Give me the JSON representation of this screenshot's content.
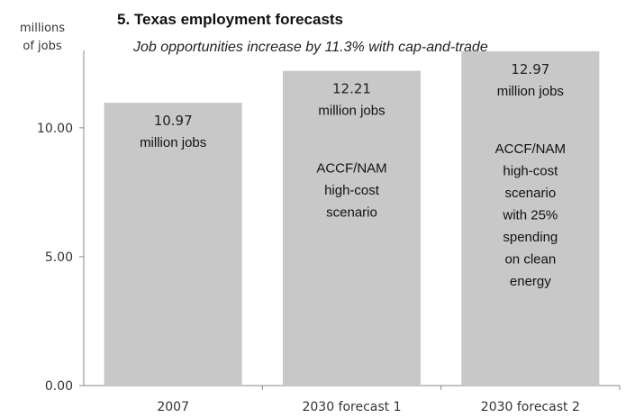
{
  "chart_data": {
    "type": "bar",
    "title": "5. Texas employment forecasts",
    "subtitle": "Job opportunities increase by 11.3% with cap-and-trade",
    "ylabel": [
      "millions",
      "of jobs"
    ],
    "ylim": [
      0,
      13
    ],
    "yticks": [
      0,
      5,
      10
    ],
    "ytick_labels": [
      "0.00",
      "5.00",
      "10.00"
    ],
    "grid": false,
    "categories": [
      "2007",
      "2030 forecast 1",
      "2030 forecast 2"
    ],
    "values": [
      10.97,
      12.21,
      12.97
    ],
    "value_labels": [
      "10.97",
      "12.21",
      "12.97"
    ],
    "unit_label": "million jobs",
    "bar_notes": [
      [],
      [
        "ACCF/NAM",
        "high-cost",
        "scenario"
      ],
      [
        "ACCF/NAM",
        "high-cost",
        "scenario",
        "with 25%",
        "spending",
        "on clean",
        "energy"
      ]
    ],
    "colors": {
      "bar": "#c8c8c8",
      "axis": "#888888"
    }
  }
}
